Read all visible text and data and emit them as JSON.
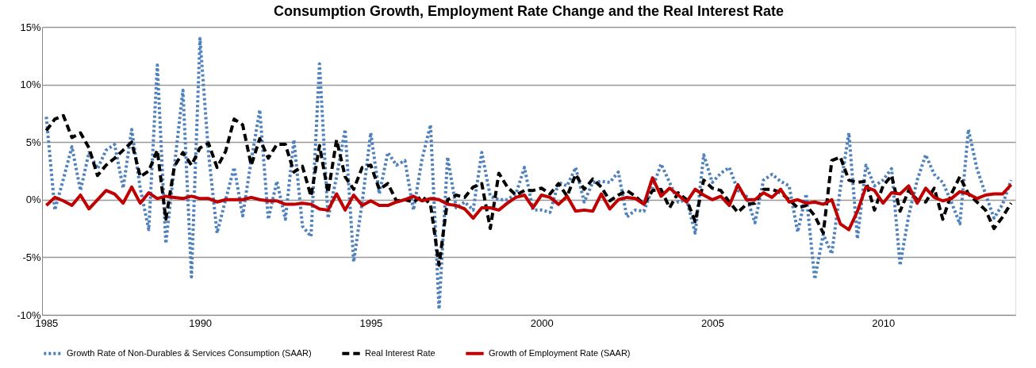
{
  "chart_data": {
    "type": "line",
    "title": "Consumption Growth, Employment Rate Change and the Real Interest Rate",
    "categories": [
      "1985",
      null,
      null,
      null,
      null,
      null,
      null,
      null,
      null,
      null,
      null,
      null,
      null,
      null,
      null,
      null,
      null,
      null,
      "1990",
      null,
      null,
      null,
      null,
      null,
      null,
      null,
      null,
      null,
      null,
      null,
      null,
      null,
      null,
      null,
      null,
      null,
      null,
      null,
      "1995",
      null,
      null,
      null,
      null,
      null,
      null,
      null,
      null,
      null,
      null,
      null,
      null,
      null,
      null,
      null,
      null,
      null,
      null,
      null,
      "2000",
      null,
      null,
      null,
      null,
      null,
      null,
      null,
      null,
      null,
      null,
      null,
      null,
      null,
      null,
      null,
      null,
      null,
      null,
      null,
      "2005",
      null,
      null,
      null,
      null,
      null,
      null,
      null,
      null,
      null,
      null,
      null,
      null,
      null,
      null,
      null,
      null,
      null,
      null,
      null,
      "2010",
      null,
      null,
      null,
      null,
      null,
      null,
      null,
      null,
      null,
      null,
      null,
      null,
      null,
      null,
      null
    ],
    "series": [
      {
        "name": "Growth Rate of Non-Durables & Services Consumption (SAAR)",
        "color": "#4f81bd",
        "line_style": "dotted",
        "values": [
          7.2,
          -0.9,
          1.8,
          4.6,
          0.8,
          4.1,
          2.7,
          4.3,
          4.8,
          1.0,
          6.1,
          1.0,
          -2.6,
          11.7,
          -3.8,
          2.9,
          9.5,
          -6.7,
          14.0,
          4.0,
          -2.9,
          0.0,
          2.8,
          -1.4,
          3.4,
          7.8,
          -1.7,
          1.6,
          -1.7,
          5.2,
          -2.3,
          -3.2,
          11.8,
          -1.6,
          2.0,
          6.1,
          -5.4,
          -0.2,
          5.8,
          0.5,
          4.1,
          3.0,
          3.4,
          -0.9,
          3.5,
          6.5,
          -9.5,
          3.7,
          -0.7,
          -0.2,
          -0.9,
          4.1,
          0.3,
          0.0,
          0.0,
          0.5,
          2.8,
          -0.9,
          -0.9,
          -1.1,
          1.5,
          1.2,
          2.8,
          -0.2,
          1.5,
          1.6,
          1.5,
          2.4,
          -1.5,
          -0.9,
          -1.0,
          1.0,
          3.1,
          1.5,
          -0.2,
          0.0,
          -2.9,
          3.9,
          1.5,
          2.3,
          2.8,
          0.8,
          0.3,
          -2.0,
          1.7,
          2.2,
          1.6,
          1.2,
          -2.8,
          0.5,
          -6.9,
          -3.0,
          -4.7,
          1.0,
          5.8,
          -3.4,
          3.0,
          1.2,
          1.7,
          2.7,
          -5.7,
          -1.4,
          1.7,
          3.9,
          2.2,
          1.5,
          -0.2,
          -2.1,
          6.1,
          2.7,
          0.5,
          -1.6,
          -0.4,
          1.7
        ]
      },
      {
        "name": "Real Interest Rate",
        "color": "#000000",
        "line_style": "dashed",
        "values": [
          6.0,
          7.0,
          7.3,
          5.4,
          5.8,
          4.5,
          2.1,
          3.0,
          3.6,
          4.3,
          5.0,
          2.0,
          2.5,
          4.3,
          -1.7,
          2.9,
          4.1,
          3.0,
          4.5,
          4.9,
          2.8,
          4.2,
          7.0,
          6.5,
          3.0,
          5.3,
          3.6,
          4.8,
          4.8,
          2.4,
          2.9,
          0.3,
          4.7,
          0.6,
          5.2,
          2.0,
          0.9,
          2.8,
          3.0,
          0.9,
          1.4,
          -0.1,
          0.0,
          -0.2,
          0.3,
          -0.4,
          -5.7,
          0.0,
          0.4,
          0.2,
          1.1,
          1.4,
          -2.5,
          2.3,
          1.1,
          0.4,
          0.8,
          0.8,
          1.0,
          0.5,
          1.4,
          0.3,
          2.2,
          0.9,
          1.8,
          1.1,
          -0.1,
          0.4,
          0.8,
          0.3,
          -0.4,
          0.8,
          0.9,
          -0.7,
          0.6,
          0.0,
          -1.9,
          1.7,
          1.0,
          0.8,
          -0.2,
          -1.1,
          -0.4,
          -0.3,
          0.9,
          0.9,
          0.6,
          0.0,
          -0.7,
          -0.5,
          -1.4,
          -2.9,
          3.4,
          3.7,
          1.7,
          1.5,
          1.6,
          -0.9,
          1.2,
          2.1,
          -1.0,
          0.8,
          0.0,
          -0.2,
          1.0,
          -1.7,
          0.5,
          2.0,
          0.5,
          -0.2,
          -0.9,
          -2.5,
          -1.5,
          -0.3
        ]
      },
      {
        "name": "Growth of Employment Rate (SAAR)",
        "color": "#c00000",
        "line_style": "solid",
        "values": [
          -0.5,
          0.2,
          -0.1,
          -0.5,
          0.4,
          -0.8,
          0.0,
          0.8,
          0.5,
          -0.3,
          1.1,
          -0.3,
          0.6,
          0.1,
          0.3,
          0.2,
          0.1,
          0.3,
          0.1,
          0.1,
          -0.2,
          0.0,
          0.0,
          0.0,
          0.2,
          0.0,
          -0.1,
          -0.1,
          -0.4,
          -0.4,
          -0.3,
          -0.4,
          -0.8,
          -0.9,
          0.5,
          -0.9,
          0.4,
          -0.5,
          -0.1,
          -0.5,
          -0.5,
          -0.2,
          0.0,
          0.3,
          -0.1,
          0.1,
          0.0,
          -0.4,
          -0.5,
          -0.8,
          -1.6,
          -0.7,
          -0.7,
          -0.9,
          -0.3,
          0.2,
          0.4,
          -0.7,
          0.4,
          0.2,
          -0.4,
          0.3,
          -1.0,
          -0.9,
          -1.0,
          0.5,
          -0.8,
          0.0,
          0.2,
          0.1,
          -0.4,
          1.9,
          0.3,
          1.0,
          0.4,
          -0.2,
          0.9,
          0.4,
          0.0,
          0.3,
          -0.5,
          1.3,
          0.0,
          0.0,
          0.6,
          0.2,
          0.9,
          -0.2,
          0.0,
          -0.3,
          -0.2,
          -0.4,
          0.0,
          -2.1,
          -2.6,
          -1.0,
          1.1,
          0.8,
          -0.3,
          0.6,
          0.5,
          1.2,
          -0.3,
          1.0,
          0.2,
          -0.1,
          0.1,
          0.7,
          0.5,
          0.1,
          0.4,
          0.5,
          0.5,
          1.3
        ]
      }
    ],
    "ylim": [
      -10,
      15
    ],
    "yticks": [
      {
        "value": -10,
        "label": "-10%"
      },
      {
        "value": -5,
        "label": "-5%"
      },
      {
        "value": 0,
        "label": "0%"
      },
      {
        "value": 5,
        "label": "5%"
      },
      {
        "value": 10,
        "label": "10%"
      },
      {
        "value": 15,
        "label": "15%"
      }
    ],
    "grid": "y",
    "legend": "bottom",
    "marker": "none"
  }
}
